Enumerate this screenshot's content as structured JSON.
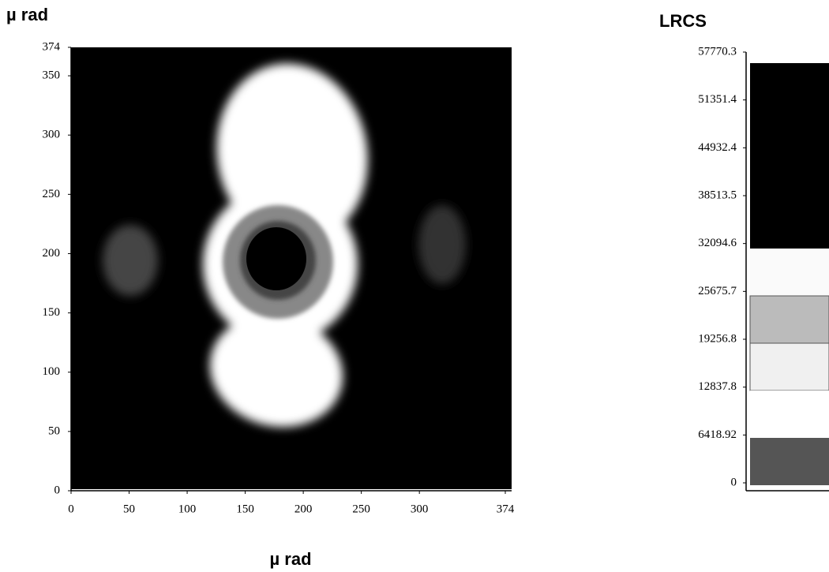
{
  "chart_data": {
    "type": "heatmap",
    "ylabel": "µ rad",
    "xlabel": "µ rad",
    "xlim": [
      0,
      374
    ],
    "xticks": [
      0,
      50,
      100,
      150,
      200,
      250,
      300,
      374
    ],
    "ylim": [
      0,
      374
    ],
    "yticks": [
      0,
      50,
      100,
      150,
      200,
      250,
      300,
      350,
      374
    ],
    "colorbar": {
      "title": "LRCS",
      "lim": [
        0,
        57770.3
      ],
      "ticks": [
        0,
        6418.92,
        12837.8,
        19256.8,
        25675.7,
        32094.6,
        38513.5,
        44932.4,
        51351.4,
        57770.3
      ]
    }
  }
}
